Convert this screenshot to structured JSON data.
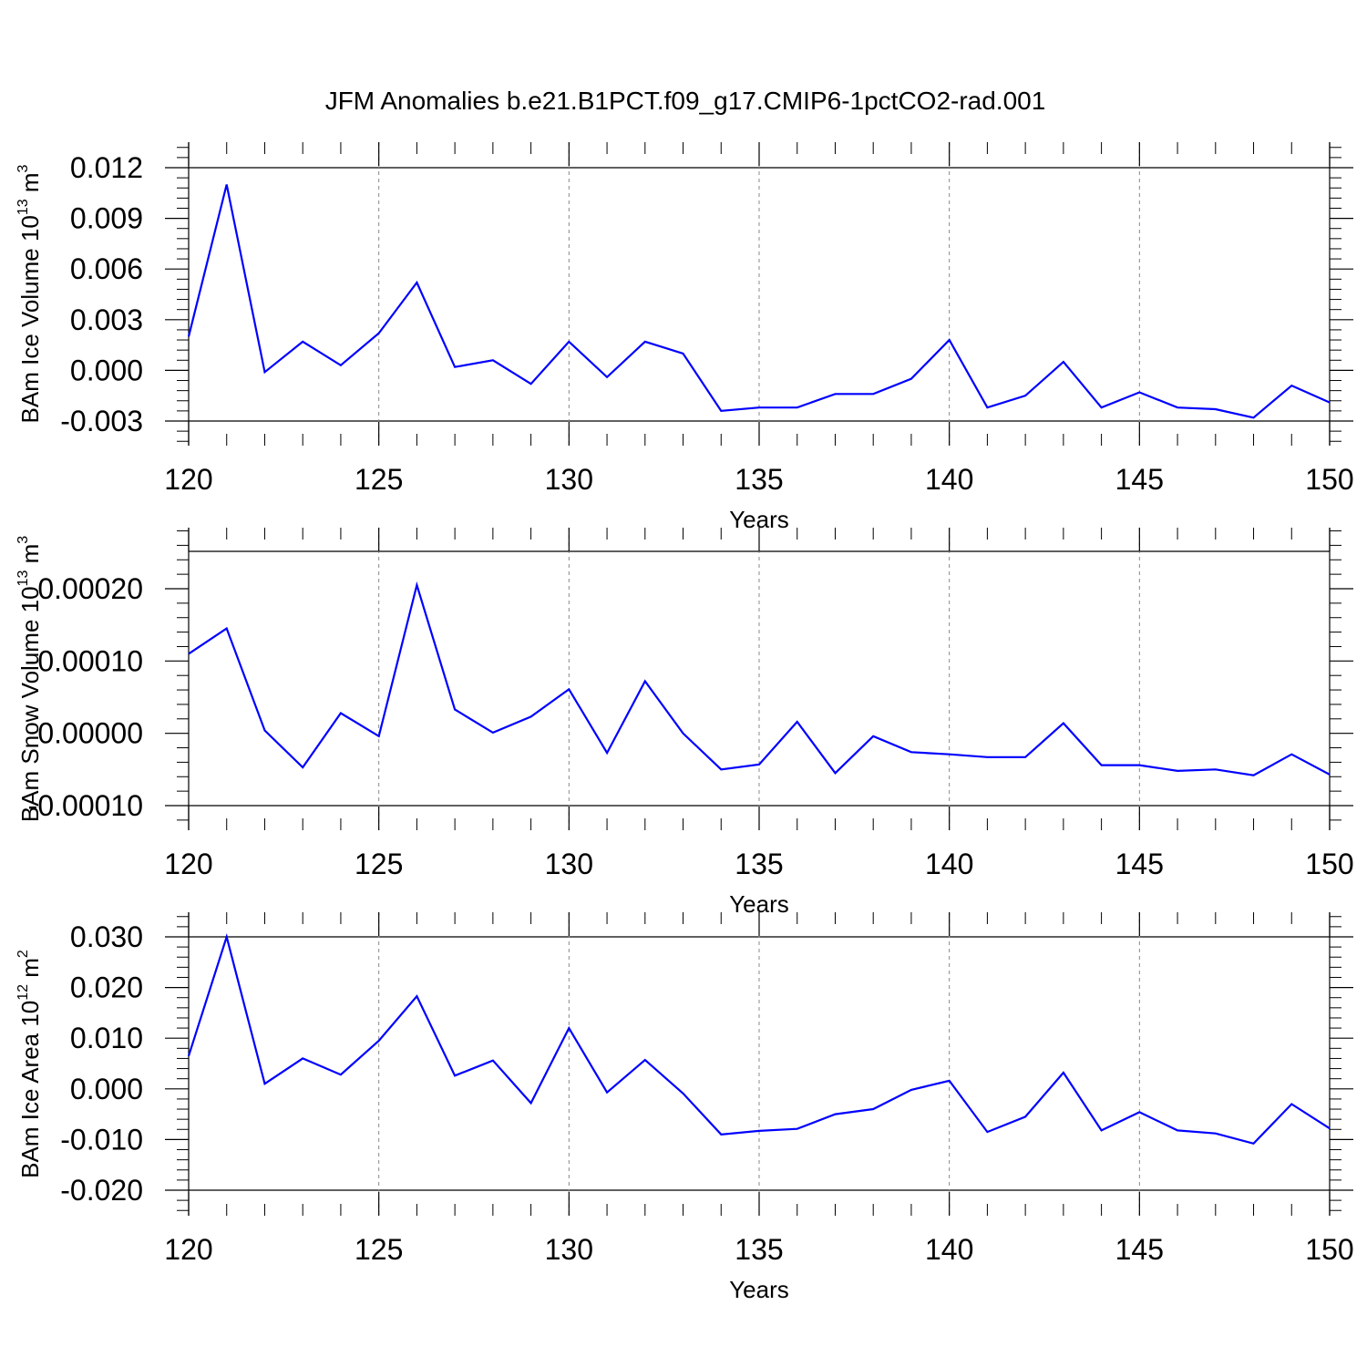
{
  "title": "JFM Anomalies b.e21.B1PCT.f09_g17.CMIP6-1pctCO2-rad.001",
  "colors": {
    "series": "#0000ff",
    "axis": "#000000",
    "grid": "#888888"
  },
  "chart_data": [
    {
      "type": "line",
      "title": "",
      "xlabel": "Years",
      "ylabel": {
        "main": "BAm Ice Volume 10",
        "exp": "13",
        "unit": " m",
        "unit_exp": "3"
      },
      "xlim": [
        120,
        150
      ],
      "ylim": [
        -0.003,
        0.012
      ],
      "yticks": [
        "0.012",
        "0.009",
        "0.006",
        "0.003",
        "0.000",
        "-0.003"
      ],
      "xticks": [
        "120",
        "125",
        "130",
        "135",
        "140",
        "145",
        "150"
      ],
      "x": [
        120,
        121,
        122,
        123,
        124,
        125,
        126,
        127,
        128,
        129,
        130,
        131,
        132,
        133,
        134,
        135,
        136,
        137,
        138,
        139,
        140,
        141,
        142,
        143,
        144,
        145,
        146,
        147,
        148,
        149,
        150
      ],
      "y": [
        0.002,
        0.011,
        -0.0001,
        0.0017,
        0.0003,
        0.0022,
        0.0052,
        0.0002,
        0.0006,
        -0.0008,
        0.0017,
        -0.0004,
        0.0017,
        0.001,
        -0.0024,
        -0.0022,
        -0.0022,
        -0.0014,
        -0.0014,
        -0.0005,
        0.0018,
        -0.0022,
        -0.0015,
        0.0005,
        -0.0022,
        -0.0013,
        -0.0022,
        -0.0023,
        -0.0028,
        -0.0009,
        -0.0019
      ]
    },
    {
      "type": "line",
      "title": "",
      "xlabel": "Years",
      "ylabel": {
        "main": "BAm Snow Volume 10",
        "exp": "13",
        "unit": " m",
        "unit_exp": "3"
      },
      "xlim": [
        120,
        150
      ],
      "ylim": [
        -0.0001,
        0.00025
      ],
      "yticks": [
        "0.00020",
        "0.00010",
        "0.00000",
        "-0.00010"
      ],
      "xticks": [
        "120",
        "125",
        "130",
        "135",
        "140",
        "145",
        "150"
      ],
      "x": [
        120,
        121,
        122,
        123,
        124,
        125,
        126,
        127,
        128,
        129,
        130,
        131,
        132,
        133,
        134,
        135,
        136,
        137,
        138,
        139,
        140,
        141,
        142,
        143,
        144,
        145,
        146,
        147,
        148,
        149,
        150
      ],
      "y": [
        0.00011,
        0.000145,
        4e-06,
        -4.7e-05,
        2.8e-05,
        -4e-06,
        0.000205,
        3.3e-05,
        1e-06,
        2.3e-05,
        6.1e-05,
        -2.7e-05,
        7.2e-05,
        0.0,
        -5e-05,
        -4.3e-05,
        1.6e-05,
        -5.5e-05,
        -4e-06,
        -2.6e-05,
        -2.9e-05,
        -3.3e-05,
        -3.3e-05,
        1.4e-05,
        -4.4e-05,
        -4.4e-05,
        -5.2e-05,
        -5e-05,
        -5.8e-05,
        -2.9e-05,
        -5.7e-05
      ]
    },
    {
      "type": "line",
      "title": "",
      "xlabel": "Years",
      "ylabel": {
        "main": "BAm Ice Area 10",
        "exp": "12",
        "unit": " m",
        "unit_exp": "2"
      },
      "xlim": [
        120,
        150
      ],
      "ylim": [
        -0.02,
        0.03
      ],
      "yticks": [
        "0.030",
        "0.020",
        "0.010",
        "0.000",
        "-0.010",
        "-0.020"
      ],
      "xticks": [
        "120",
        "125",
        "130",
        "135",
        "140",
        "145",
        "150"
      ],
      "x": [
        120,
        121,
        122,
        123,
        124,
        125,
        126,
        127,
        128,
        129,
        130,
        131,
        132,
        133,
        134,
        135,
        136,
        137,
        138,
        139,
        140,
        141,
        142,
        143,
        144,
        145,
        146,
        147,
        148,
        149,
        150
      ],
      "y": [
        0.0065,
        0.03,
        0.001,
        0.006,
        0.0028,
        0.0095,
        0.0183,
        0.0026,
        0.0056,
        -0.0028,
        0.012,
        -0.0007,
        0.0057,
        -0.0009,
        -0.009,
        -0.0083,
        -0.0079,
        -0.005,
        -0.004,
        -0.0002,
        0.0016,
        -0.0085,
        -0.0055,
        0.0032,
        -0.0082,
        -0.0046,
        -0.0082,
        -0.0088,
        -0.0108,
        -0.003,
        -0.0078
      ]
    }
  ]
}
